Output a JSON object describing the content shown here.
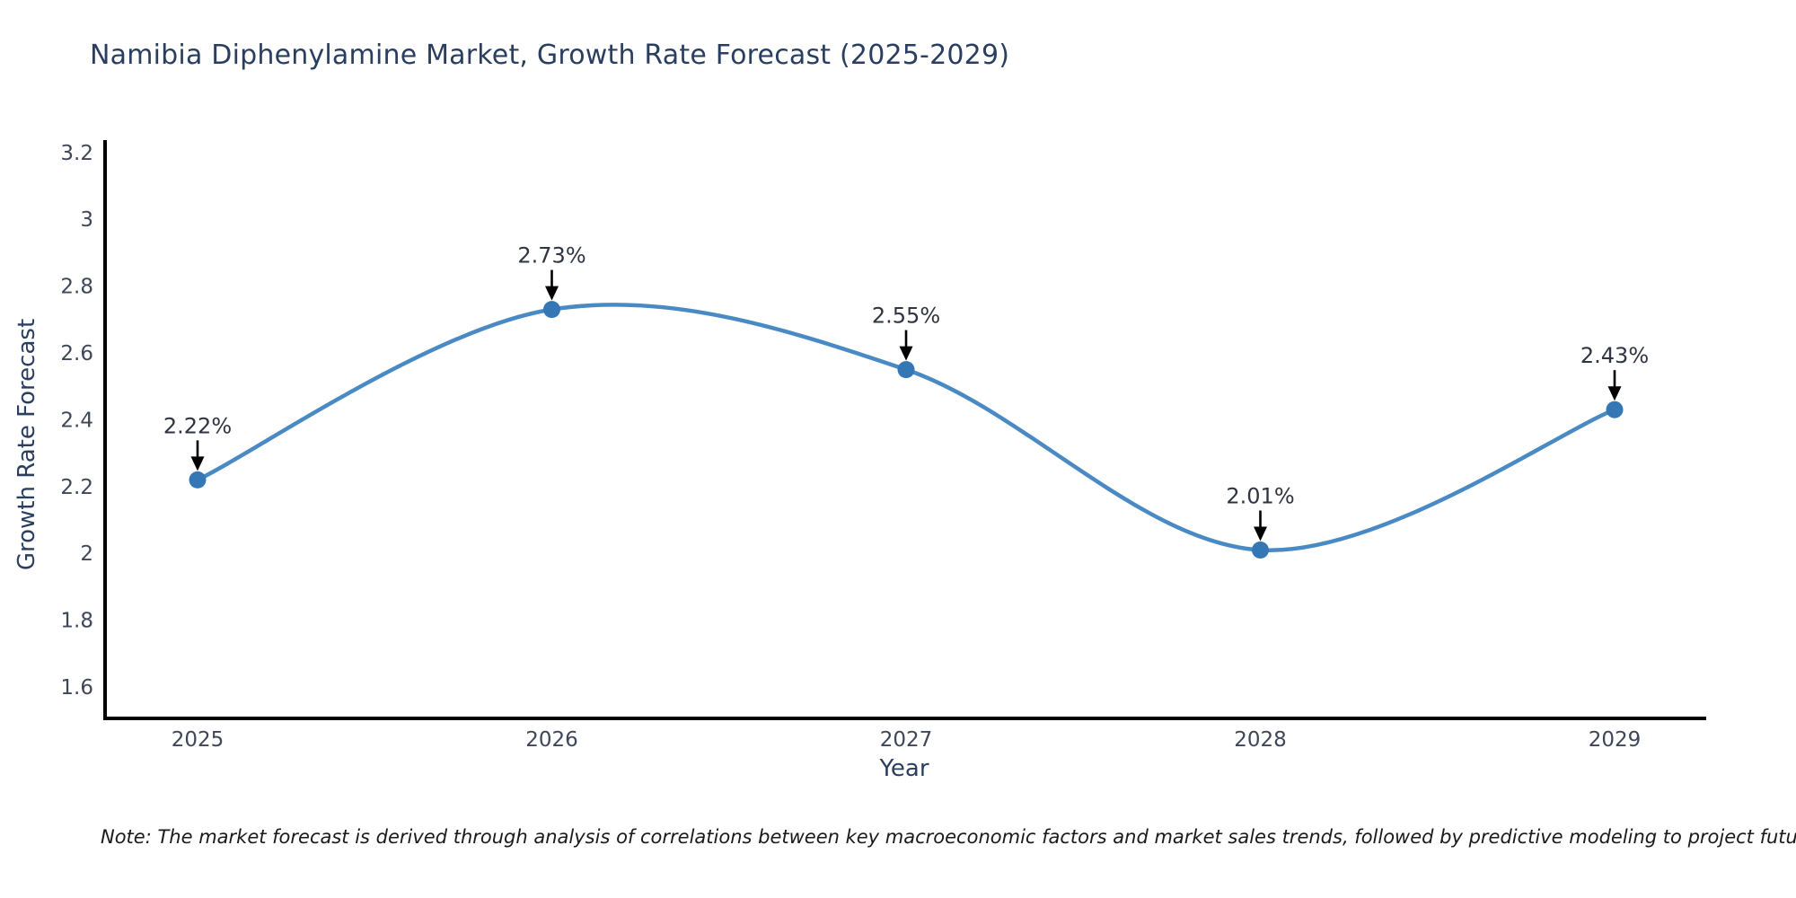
{
  "title": "Namibia Diphenylamine Market, Growth Rate Forecast (2025-2029)",
  "note": "Note: The market forecast is derived through analysis of correlations between key macroeconomic factors and market sales trends, followed by predictive modeling to project future sales",
  "chart_data": {
    "type": "line",
    "line_shape": "spline",
    "title": "Namibia Diphenylamine Market, Growth Rate Forecast (2025-2029)",
    "xlabel": "Year",
    "ylabel": "Growth Rate Forecast",
    "categories": [
      "2025",
      "2026",
      "2027",
      "2028",
      "2029"
    ],
    "series": [
      {
        "name": "Growth Rate Forecast",
        "values": [
          2.22,
          2.73,
          2.55,
          2.01,
          2.43
        ]
      }
    ],
    "point_labels": [
      "2.22%",
      "2.73%",
      "2.55%",
      "2.01%",
      "2.43%"
    ],
    "annotation_style": "down-arrow",
    "y_ticks": [
      "1.6",
      "1.8",
      "2",
      "2.2",
      "2.4",
      "2.6",
      "2.8",
      "3",
      "3.2"
    ],
    "ylim": [
      1.51,
      3.23
    ],
    "grid": false,
    "legend": "none",
    "marker_size_px": 19,
    "colors": {
      "line": "#4a8ac4",
      "marker": "#3577b4",
      "axis": "#000000",
      "title_text": "#2a3f5f",
      "axis_title_text": "#2a3f5f",
      "tick_text": "#3e4758",
      "annotation_text": "#2e3440",
      "arrow": "#000000",
      "note_text": "#1a1a1a",
      "background": "#ffffff"
    }
  }
}
